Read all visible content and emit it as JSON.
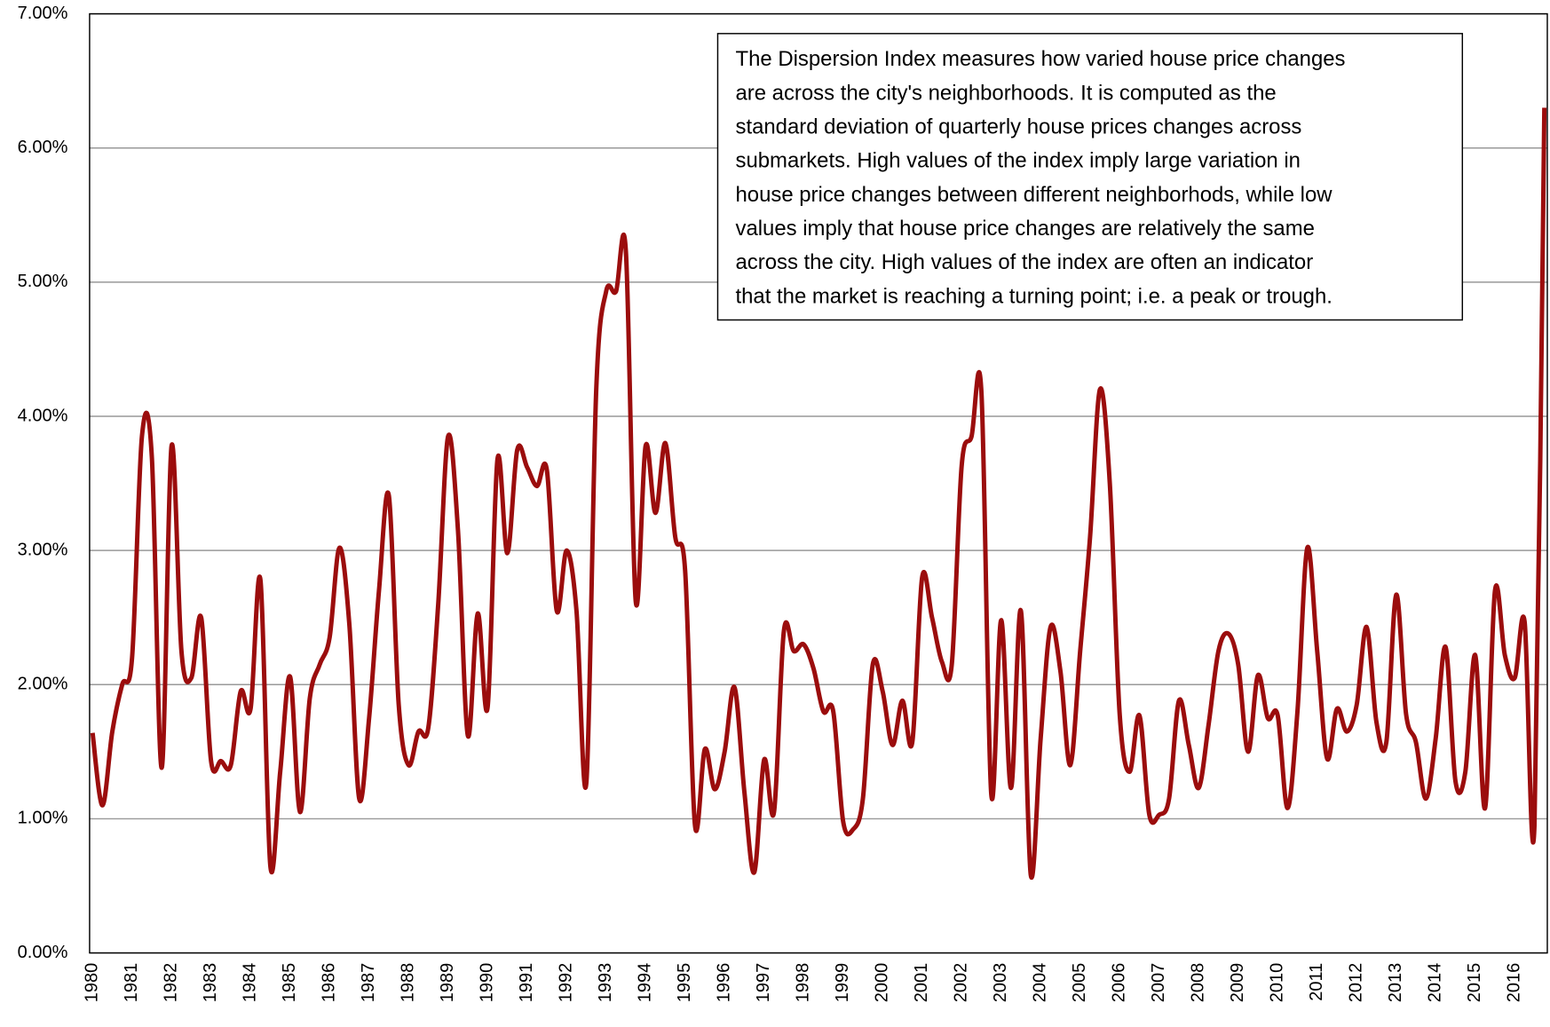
{
  "chart_data": {
    "type": "line",
    "annotation": [
      "The Dispersion Index measures how varied house price changes",
      "are across the city's neighborhoods.  It is computed as the",
      "standard deviation of quarterly house prices changes across",
      "submarkets.  High values of the index imply large variation in",
      "house price changes between different neighborhods, while low",
      "values imply that house price changes  are relatively the same",
      "across the city.  High values of the index are often an indicator",
      "that the market is reaching a turning point; i.e. a peak or trough."
    ],
    "categories": [
      "1980",
      null,
      null,
      null,
      "1981",
      null,
      null,
      null,
      "1982",
      null,
      null,
      null,
      "1983",
      null,
      null,
      null,
      "1984",
      null,
      null,
      null,
      "1985",
      null,
      null,
      null,
      "1986",
      null,
      null,
      null,
      "1987",
      null,
      null,
      null,
      "1988",
      null,
      null,
      null,
      "1989",
      null,
      null,
      null,
      "1990",
      null,
      null,
      null,
      "1991",
      null,
      null,
      null,
      "1992",
      null,
      null,
      null,
      "1993",
      null,
      null,
      null,
      "1994",
      null,
      null,
      null,
      "1995",
      null,
      null,
      null,
      "1996",
      null,
      null,
      null,
      "1997",
      null,
      null,
      null,
      "1998",
      null,
      null,
      null,
      "1999",
      null,
      null,
      null,
      "2000",
      null,
      null,
      null,
      "2001",
      null,
      null,
      null,
      "2002",
      null,
      null,
      null,
      "2003",
      null,
      null,
      null,
      "2004",
      null,
      null,
      null,
      "2005",
      null,
      null,
      null,
      "2006",
      null,
      null,
      null,
      "2007",
      null,
      null,
      null,
      "2008",
      null,
      null,
      null,
      "2009",
      null,
      null,
      null,
      "2010",
      null,
      null,
      null,
      "2011",
      null,
      null,
      null,
      "2012",
      null,
      null,
      null,
      "2013",
      null,
      null,
      null,
      "2014",
      null,
      null,
      null,
      "2015",
      null,
      null,
      null,
      "2016",
      null,
      null,
      null
    ],
    "series": [
      {
        "color": "#9b0d0d",
        "values": [
          1.64,
          1.1,
          1.65,
          2.0,
          2.2,
          3.85,
          3.7,
          1.38,
          3.78,
          2.25,
          2.05,
          2.5,
          1.43,
          1.43,
          1.4,
          1.95,
          1.82,
          2.78,
          0.65,
          1.35,
          2.06,
          1.05,
          1.9,
          2.15,
          2.35,
          3.02,
          2.45,
          1.15,
          1.75,
          2.7,
          3.41,
          1.85,
          1.4,
          1.65,
          1.68,
          2.6,
          3.85,
          3.15,
          1.62,
          2.53,
          1.83,
          3.68,
          2.98,
          3.75,
          3.62,
          3.48,
          3.6,
          2.55,
          3.0,
          2.55,
          1.27,
          4.2,
          4.93,
          4.93,
          5.23,
          2.62,
          3.78,
          3.28,
          3.8,
          3.1,
          2.85,
          0.95,
          1.52,
          1.22,
          1.5,
          1.98,
          1.2,
          0.6,
          1.44,
          1.05,
          2.4,
          2.25,
          2.3,
          2.12,
          1.8,
          1.8,
          0.98,
          0.92,
          1.15,
          2.15,
          1.95,
          1.55,
          1.88,
          1.57,
          2.8,
          2.5,
          2.17,
          2.15,
          3.63,
          3.85,
          4.18,
          1.18,
          2.48,
          1.23,
          2.55,
          0.58,
          1.6,
          2.43,
          2.1,
          1.4,
          2.25,
          3.1,
          4.2,
          3.5,
          1.78,
          1.35,
          1.77,
          1.03,
          1.03,
          1.15,
          1.88,
          1.55,
          1.23,
          1.7,
          2.25,
          2.38,
          2.15,
          1.5,
          2.07,
          1.75,
          1.77,
          1.08,
          1.8,
          3.02,
          2.25,
          1.45,
          1.82,
          1.65,
          1.85,
          2.43,
          1.72,
          1.57,
          2.67,
          1.78,
          1.57,
          1.15,
          1.6,
          2.28,
          1.28,
          1.35,
          2.22,
          1.08,
          2.7,
          2.22,
          2.05,
          2.47,
          0.95,
          6.3
        ]
      }
    ],
    "ylim": [
      0,
      7
    ],
    "yticks": [
      {
        "value": 0,
        "label": "0.00%"
      },
      {
        "value": 1,
        "label": "1.00%"
      },
      {
        "value": 2,
        "label": "2.00%"
      },
      {
        "value": 3,
        "label": "3.00%"
      },
      {
        "value": 4,
        "label": "4.00%"
      },
      {
        "value": 5,
        "label": "5.00%"
      },
      {
        "value": 6,
        "label": "6.00%"
      },
      {
        "value": 7,
        "label": "7.00%"
      }
    ],
    "grid": true
  }
}
